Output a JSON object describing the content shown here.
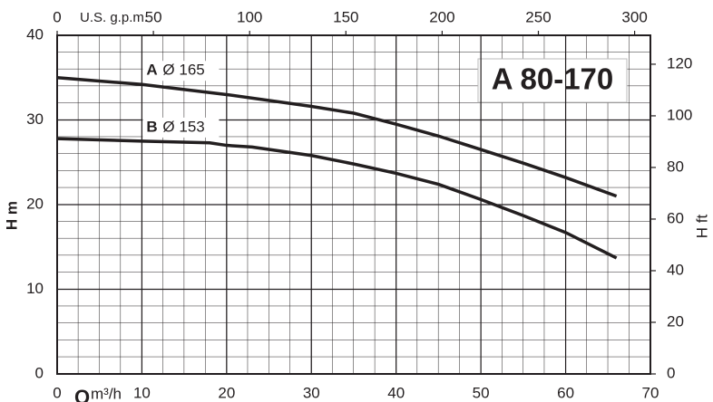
{
  "chart_data": {
    "type": "line",
    "title": "A 80-170",
    "x_label": "Q",
    "x_unit": "m³/h",
    "y_label": "H m",
    "y2_label": "H ft",
    "x2_label": "U.S. g.p.m.",
    "xlim": [
      0,
      70
    ],
    "xticks": [
      0,
      10,
      20,
      30,
      40,
      50,
      60,
      70
    ],
    "x2lim": [
      0,
      308.2
    ],
    "x2ticks": [
      0,
      50,
      100,
      150,
      200,
      250,
      300
    ],
    "ylim": [
      0,
      40
    ],
    "yticks": [
      0,
      10,
      20,
      30,
      40
    ],
    "y2lim": [
      0,
      131.2
    ],
    "y2ticks": [
      0,
      20,
      40,
      60,
      80,
      100,
      120
    ],
    "grid": true,
    "series": [
      {
        "name": "A",
        "diameter": "Ø 165",
        "color": "#231f20",
        "x": [
          0,
          10,
          20,
          30,
          35,
          40,
          45,
          50,
          55,
          60,
          66
        ],
        "values": [
          35,
          34.2,
          33,
          31.6,
          30.8,
          29.5,
          28.1,
          26.5,
          24.9,
          23.2,
          21
        ]
      },
      {
        "name": "B",
        "diameter": "Ø 153",
        "color": "#231f20",
        "x": [
          0,
          10,
          18,
          20,
          23,
          30,
          35,
          40,
          45,
          50,
          55,
          60,
          66
        ],
        "values": [
          27.8,
          27.5,
          27.3,
          27.0,
          26.8,
          25.8,
          24.8,
          23.7,
          22.4,
          20.6,
          18.7,
          16.7,
          13.7
        ]
      }
    ]
  }
}
